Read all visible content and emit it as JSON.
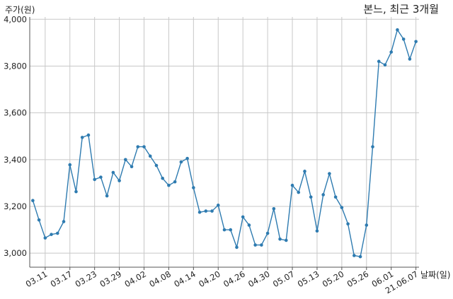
{
  "chart_data": {
    "type": "line",
    "title": "본느, 최근 3개월",
    "xlabel": "날짜(일)",
    "ylabel": "주가(원)",
    "ylim": [
      2940,
      4010
    ],
    "grid": true,
    "colors": {
      "line": "#2e7bb0",
      "grid": "#c8c8c8",
      "axis": "#555555"
    },
    "tick_labels": [
      "03.11",
      "03.17",
      "03.23",
      "03.29",
      "04.02",
      "04.08",
      "04.14",
      "04.20",
      "04.26",
      "04.30",
      "05.07",
      "05.13",
      "05.20",
      "05.26",
      "06.01",
      "21.06.07"
    ],
    "y_ticks": [
      3000,
      3200,
      3400,
      3600,
      3800,
      4000
    ],
    "y_tick_labels": [
      "3,000",
      "3,200",
      "3,400",
      "3,600",
      "3,800",
      "4,000"
    ],
    "x_range": [
      -0.5,
      62.5
    ],
    "tick_positions": [
      2,
      6,
      10,
      14,
      18,
      22,
      26,
      30,
      34,
      38,
      42,
      46,
      50,
      54,
      58,
      62
    ],
    "x": [
      0,
      1,
      2,
      3,
      4,
      5,
      6,
      7,
      8,
      9,
      10,
      11,
      12,
      13,
      14,
      15,
      16,
      17,
      18,
      19,
      20,
      21,
      22,
      23,
      24,
      25,
      26,
      27,
      28,
      29,
      30,
      31,
      32,
      33,
      34,
      35,
      36,
      37,
      38,
      39,
      40,
      41,
      42,
      43,
      44,
      45,
      46,
      47,
      48,
      49,
      50,
      51,
      52,
      53,
      54,
      55,
      56,
      57,
      58,
      59,
      60,
      61,
      62
    ],
    "values": [
      3225,
      3142,
      3065,
      3080,
      3085,
      3135,
      3378,
      3263,
      3495,
      3505,
      3315,
      3325,
      3245,
      3345,
      3310,
      3400,
      3370,
      3455,
      3455,
      3415,
      3375,
      3320,
      3290,
      3305,
      3390,
      3405,
      3280,
      3175,
      3180,
      3180,
      3205,
      3100,
      3100,
      3025,
      3155,
      3120,
      3035,
      3035,
      3085,
      3190,
      3060,
      3055,
      3290,
      3260,
      3350,
      3240,
      3095,
      3250,
      3340,
      3240,
      3195,
      3125,
      2990,
      2985,
      3120,
      3455,
      3820,
      3805,
      3860,
      3955,
      3915,
      3830,
      3905
    ]
  }
}
